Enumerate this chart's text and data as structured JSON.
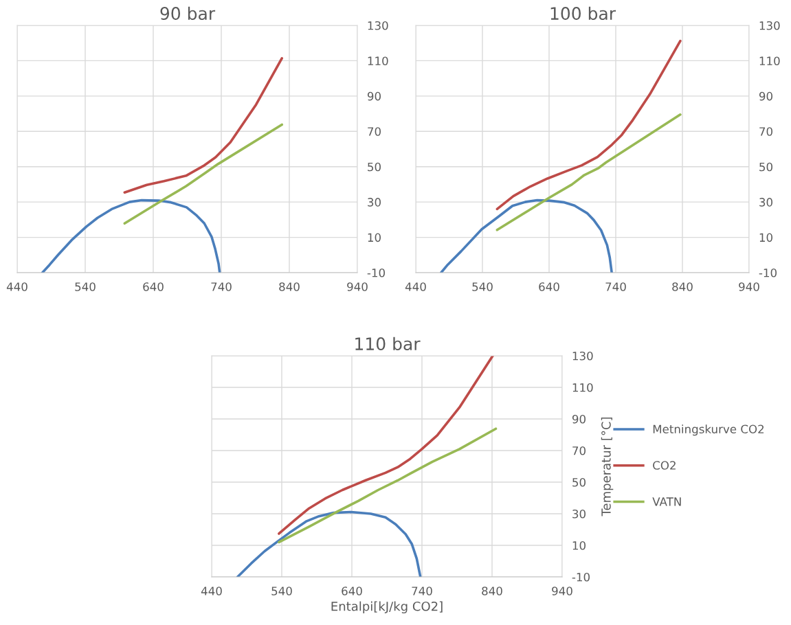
{
  "chart_data": [
    {
      "type": "line",
      "title": "90 bar",
      "xlim": [
        440,
        940
      ],
      "ylim": [
        -10,
        130
      ],
      "xticks": [
        440,
        540,
        640,
        740,
        840,
        940
      ],
      "yticks": [
        -10,
        10,
        30,
        50,
        70,
        90,
        110,
        130
      ],
      "grid": true,
      "legend": false,
      "series": [
        {
          "color": "#4a7ebb",
          "x": [
            477.1,
            487.7,
            500,
            520,
            541.5,
            558,
            579,
            605,
            623,
            648,
            666,
            689,
            704,
            714.9,
            725.7,
            731,
            736,
            737.7
          ],
          "values": [
            -10,
            -5.5,
            0,
            8.4,
            16,
            21,
            26,
            30,
            31,
            30.8,
            29.8,
            27,
            22.3,
            18,
            10.4,
            3.5,
            -4.9,
            -10
          ]
        },
        {
          "color": "#be4b48",
          "x": [
            597.9,
            630.4,
            655.7,
            688.3,
            713.6,
            731.6,
            753.3,
            791.2,
            829.1
          ],
          "values": [
            35.4,
            39.7,
            41.8,
            44.9,
            50.4,
            55.3,
            63.8,
            85.2,
            111.4
          ]
        },
        {
          "color": "#98b954",
          "x": [
            597.9,
            653.9,
            688.3,
            715.4,
            735.2,
            829.1
          ],
          "values": [
            17.9,
            31.1,
            39,
            46.2,
            51.5,
            73.8
          ]
        }
      ]
    },
    {
      "type": "line",
      "title": "100 bar",
      "xlim": [
        440,
        940
      ],
      "ylim": [
        -10,
        130
      ],
      "xticks": [
        440,
        540,
        640,
        740,
        840,
        940
      ],
      "yticks": [
        -10,
        10,
        30,
        50,
        70,
        90,
        110,
        130
      ],
      "grid": true,
      "legend": false,
      "series": [
        {
          "color": "#4a7ebb",
          "x": [
            478,
            487.9,
            508,
            539,
            565,
            585,
            604,
            622,
            640,
            663,
            678,
            697,
            707,
            718,
            727,
            731,
            734
          ],
          "values": [
            -10,
            -5.5,
            2.1,
            14.6,
            22,
            27.8,
            30,
            31,
            30.8,
            29.8,
            28,
            23.7,
            19.8,
            14,
            5.6,
            -1.4,
            -10
          ]
        },
        {
          "color": "#be4b48",
          "x": [
            562,
            586.3,
            611.9,
            637.5,
            666.8,
            688.7,
            712.5,
            734.4,
            749,
            765.5,
            791.1,
            836.8
          ],
          "values": [
            26,
            33.3,
            38.8,
            43.3,
            47.6,
            50.7,
            55.5,
            62.5,
            68,
            76.4,
            91,
            121.2
          ]
        },
        {
          "color": "#98b954",
          "x": [
            562,
            608.4,
            641.3,
            674.2,
            692.5,
            714.4,
            725.4,
            836.8
          ],
          "values": [
            14.2,
            25,
            32.7,
            39.9,
            45.2,
            49.3,
            52.4,
            79.5
          ]
        }
      ]
    },
    {
      "type": "line",
      "title": "110 bar",
      "xlabel": "Entalpi[kJ/kg CO2]",
      "ylabel": "Temperatur [°C]",
      "xlim": [
        440,
        940
      ],
      "ylim": [
        -10,
        130
      ],
      "xticks": [
        440,
        540,
        640,
        740,
        840,
        940
      ],
      "yticks": [
        -10,
        10,
        30,
        50,
        70,
        90,
        110,
        130
      ],
      "grid": true,
      "legend": "right",
      "series": [
        {
          "name": "Metningskurve CO2",
          "color": "#4a7ebb",
          "x": [
            476.9,
            496.3,
            515.6,
            536.7,
            550.8,
            575.4,
            593,
            614,
            639,
            667,
            688,
            702.6,
            716.7,
            725.5,
            732.5,
            737.8
          ],
          "values": [
            -10,
            -1.5,
            6.3,
            13.3,
            17.9,
            25.3,
            28.4,
            30.6,
            31.1,
            30,
            27.7,
            23.3,
            17.1,
            10.9,
            1.6,
            -10
          ]
        },
        {
          "name": "CO2",
          "color": "#be4b48",
          "x": [
            536,
            557.8,
            578.9,
            601.8,
            626.4,
            659.8,
            688,
            705.5,
            723.1,
            739,
            761.8,
            793.5,
            841
          ],
          "values": [
            17.4,
            25.7,
            33.4,
            39.6,
            45,
            51.2,
            55.9,
            59.5,
            64.7,
            70.6,
            79.6,
            97.3,
            130
          ]
        },
        {
          "name": "VATN",
          "color": "#98b954",
          "x": [
            536,
            578.9,
            621.1,
            649.2,
            677.4,
            705.5,
            723.1,
            754.8,
            793.5,
            845.4
          ],
          "values": [
            12,
            21.8,
            31.8,
            38.1,
            45,
            51.1,
            55.4,
            62.9,
            70.9,
            83.8
          ]
        }
      ]
    }
  ]
}
